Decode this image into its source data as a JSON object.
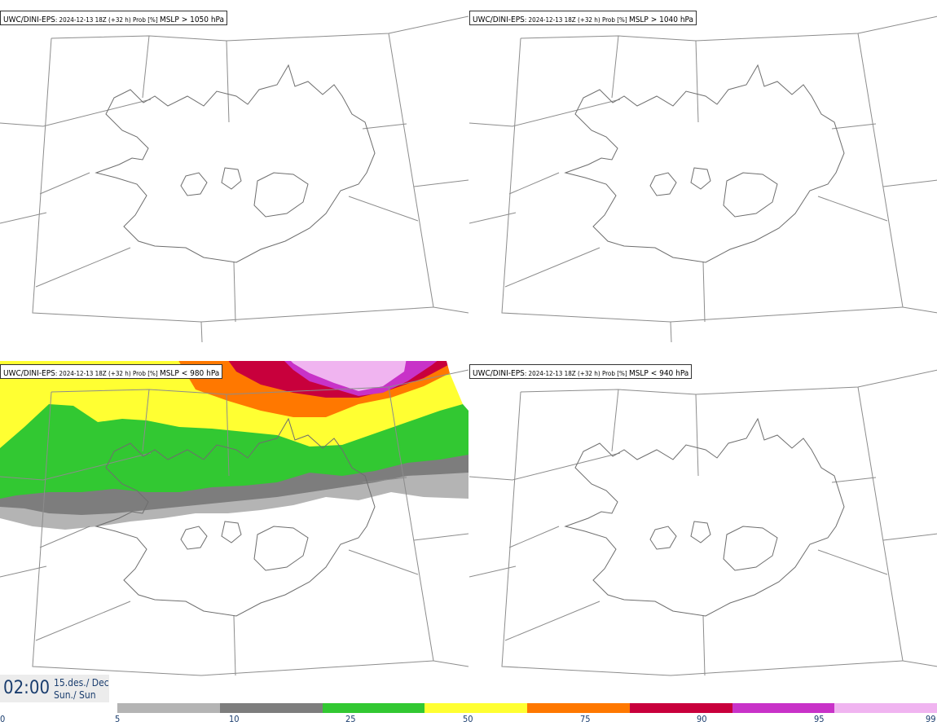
{
  "panels": [
    {
      "model": "UWC/DINI-EPS",
      "run": ": 2024-12-13 18Z (+32 h) Prob [%] ",
      "threshold": "MSLP > 1050 hPa",
      "fill": "none"
    },
    {
      "model": "UWC/DINI-EPS",
      "run": ": 2024-12-13 18Z (+32 h) Prob [%] ",
      "threshold": "MSLP > 1040 hPa",
      "fill": "none"
    },
    {
      "model": "UWC/DINI-EPS",
      "run": ": 2024-12-13 18Z (+32 h) Prob [%] ",
      "threshold": "MSLP < 980 hPa",
      "fill": "probability-bands"
    },
    {
      "model": "UWC/DINI-EPS",
      "run": ": 2024-12-13 18Z (+32 h) Prob [%] ",
      "threshold": "MSLP < 940 hPa",
      "fill": "none"
    }
  ],
  "valid_time": {
    "time": "02:00",
    "date_line1": "15.des./ Dec",
    "date_line2": "Sun./ Sun"
  },
  "legend": {
    "ticks": [
      "0",
      "5",
      "10",
      "25",
      "50",
      "75",
      "90",
      "95",
      "99"
    ],
    "colors": [
      "#b4b4b4",
      "#7d7d7d",
      "#32c832",
      "#ffff32",
      "#ff7800",
      "#c8003c",
      "#c832c8",
      "#f0b4f0"
    ]
  }
}
